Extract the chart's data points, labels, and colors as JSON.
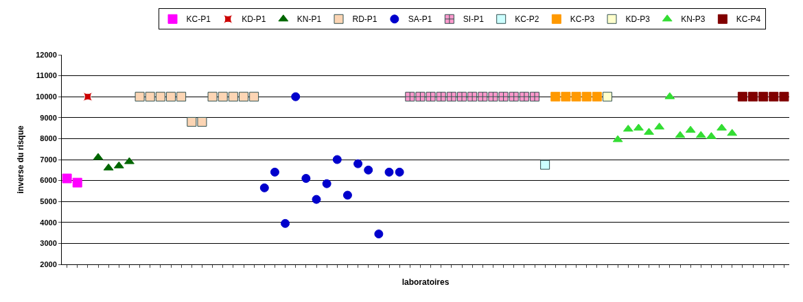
{
  "chart_data": {
    "type": "scatter",
    "xlabel": "laboratoires",
    "ylabel": "inverse du risque",
    "categories": [
      null,
      null,
      null,
      null,
      null,
      null,
      null,
      null,
      null,
      null,
      null,
      null,
      null,
      null,
      null,
      null,
      null,
      null,
      null,
      null,
      null,
      null,
      null,
      null,
      null,
      null,
      null,
      null,
      null,
      null,
      null,
      null,
      null,
      null,
      null,
      null,
      null,
      null,
      null,
      null,
      null,
      null,
      null,
      null,
      null,
      null,
      null,
      null,
      null,
      null,
      null,
      null,
      null,
      null,
      null,
      null,
      null,
      null,
      null,
      null,
      null,
      null,
      null,
      null,
      null,
      null,
      null,
      null,
      null,
      null
    ],
    "ylim": [
      2000,
      12000
    ],
    "yticks": [
      2000,
      3000,
      4000,
      5000,
      6000,
      7000,
      8000,
      9000,
      10000,
      11000,
      12000
    ],
    "grid": "y",
    "legend": "top",
    "series": [
      {
        "name": "KC-P1",
        "color": "#ff00ff",
        "marker": "square",
        "values": [
          6100,
          5900,
          null,
          null,
          null,
          null,
          null,
          null,
          null,
          null,
          null,
          null,
          null,
          null,
          null,
          null,
          null,
          null,
          null,
          null,
          null,
          null,
          null,
          null,
          null,
          null,
          null,
          null,
          null,
          null,
          null,
          null,
          null,
          null,
          null,
          null,
          null,
          null,
          null,
          null,
          null,
          null,
          null,
          null,
          null,
          null,
          null,
          null,
          null,
          null,
          null,
          null,
          null,
          null,
          null,
          null,
          null,
          null,
          null,
          null,
          null,
          null,
          null,
          null,
          null,
          null,
          null,
          null,
          null,
          null
        ]
      },
      {
        "name": "KD-P1",
        "color": "#cc0000",
        "marker": "star",
        "values": [
          null,
          null,
          10000,
          null,
          null,
          null,
          null,
          null,
          null,
          null,
          null,
          null,
          null,
          null,
          null,
          null,
          null,
          null,
          null,
          null,
          null,
          null,
          null,
          null,
          null,
          null,
          null,
          null,
          null,
          null,
          null,
          null,
          null,
          null,
          null,
          null,
          null,
          null,
          null,
          null,
          null,
          null,
          null,
          null,
          null,
          null,
          null,
          null,
          null,
          null,
          null,
          null,
          null,
          null,
          null,
          null,
          null,
          null,
          null,
          null,
          null,
          null,
          null,
          null,
          null,
          null,
          null,
          null,
          null,
          null
        ]
      },
      {
        "name": "KN-P1",
        "color": "#006600",
        "marker": "triangle",
        "values": [
          null,
          null,
          null,
          7100,
          6600,
          6700,
          6900,
          null,
          null,
          null,
          null,
          null,
          null,
          null,
          null,
          null,
          null,
          null,
          null,
          null,
          null,
          null,
          null,
          null,
          null,
          null,
          null,
          null,
          null,
          null,
          null,
          null,
          null,
          null,
          null,
          null,
          null,
          null,
          null,
          null,
          null,
          null,
          null,
          null,
          null,
          null,
          null,
          null,
          null,
          null,
          null,
          null,
          null,
          null,
          null,
          null,
          null,
          null,
          null,
          null,
          null,
          null,
          null,
          null,
          null,
          null,
          null,
          null,
          null,
          null
        ]
      },
      {
        "name": "RD-P1",
        "color": "#fcd5b4",
        "marker": "square",
        "values": [
          null,
          null,
          null,
          null,
          null,
          null,
          null,
          10000,
          10000,
          10000,
          10000,
          10000,
          8800,
          8800,
          10000,
          10000,
          10000,
          10000,
          10000,
          null,
          null,
          null,
          null,
          null,
          null,
          null,
          null,
          null,
          null,
          null,
          null,
          null,
          null,
          null,
          null,
          null,
          null,
          null,
          null,
          null,
          null,
          null,
          null,
          null,
          null,
          null,
          null,
          null,
          null,
          null,
          null,
          null,
          null,
          null,
          null,
          null,
          null,
          null,
          null,
          null,
          null,
          null,
          null,
          null,
          null,
          null,
          null,
          null,
          null,
          null
        ]
      },
      {
        "name": "SA-P1",
        "color": "#0000cc",
        "marker": "circle",
        "values": [
          null,
          null,
          null,
          null,
          null,
          null,
          null,
          null,
          null,
          null,
          null,
          null,
          null,
          null,
          null,
          null,
          null,
          null,
          null,
          5650,
          6400,
          3950,
          10000,
          6100,
          5100,
          5850,
          7000,
          5300,
          6800,
          6500,
          3450,
          6400,
          6400,
          null,
          null,
          null,
          null,
          null,
          null,
          null,
          null,
          null,
          null,
          null,
          null,
          null,
          null,
          null,
          null,
          null,
          null,
          null,
          null,
          null,
          null,
          null,
          null,
          null,
          null,
          null,
          null,
          null,
          null,
          null,
          null,
          null,
          null,
          null,
          null,
          null
        ]
      },
      {
        "name": "SI-P1",
        "color": "#ff99cc",
        "marker": "cross",
        "values": [
          null,
          null,
          null,
          null,
          null,
          null,
          null,
          null,
          null,
          null,
          null,
          null,
          null,
          null,
          null,
          null,
          null,
          null,
          null,
          null,
          null,
          null,
          null,
          null,
          null,
          null,
          null,
          null,
          null,
          null,
          null,
          null,
          null,
          10000,
          10000,
          10000,
          10000,
          10000,
          10000,
          10000,
          10000,
          10000,
          10000,
          10000,
          10000,
          10000,
          null,
          null,
          null,
          null,
          null,
          null,
          null,
          null,
          null,
          null,
          null,
          null,
          null,
          null,
          null,
          null,
          null,
          null,
          null,
          null,
          null,
          null,
          null,
          null
        ]
      },
      {
        "name": "KC-P2",
        "color": "#ccffff",
        "marker": "square",
        "values": [
          null,
          null,
          null,
          null,
          null,
          null,
          null,
          null,
          null,
          null,
          null,
          null,
          null,
          null,
          null,
          null,
          null,
          null,
          null,
          null,
          null,
          null,
          null,
          null,
          null,
          null,
          null,
          null,
          null,
          null,
          null,
          null,
          null,
          null,
          null,
          null,
          null,
          null,
          null,
          null,
          null,
          null,
          null,
          null,
          null,
          null,
          6750,
          null,
          null,
          null,
          null,
          null,
          null,
          null,
          null,
          null,
          null,
          null,
          null,
          null,
          null,
          null,
          null,
          null,
          null,
          null,
          null,
          null,
          null,
          null
        ]
      },
      {
        "name": "KC-P3",
        "color": "#ff9900",
        "marker": "square",
        "values": [
          null,
          null,
          null,
          null,
          null,
          null,
          null,
          null,
          null,
          null,
          null,
          null,
          null,
          null,
          null,
          null,
          null,
          null,
          null,
          null,
          null,
          null,
          null,
          null,
          null,
          null,
          null,
          null,
          null,
          null,
          null,
          null,
          null,
          null,
          null,
          null,
          null,
          null,
          null,
          null,
          null,
          null,
          null,
          null,
          null,
          null,
          null,
          10000,
          10000,
          10000,
          10000,
          10000,
          null,
          null,
          null,
          null,
          null,
          null,
          null,
          null,
          null,
          null,
          null,
          null,
          null,
          null,
          null,
          null,
          null,
          null
        ]
      },
      {
        "name": "KD-P3",
        "color": "#ffffcc",
        "marker": "square",
        "values": [
          null,
          null,
          null,
          null,
          null,
          null,
          null,
          null,
          null,
          null,
          null,
          null,
          null,
          null,
          null,
          null,
          null,
          null,
          null,
          null,
          null,
          null,
          null,
          null,
          null,
          null,
          null,
          null,
          null,
          null,
          null,
          null,
          null,
          null,
          null,
          null,
          null,
          null,
          null,
          null,
          null,
          null,
          null,
          null,
          null,
          null,
          null,
          null,
          null,
          null,
          null,
          null,
          10000,
          null,
          null,
          null,
          null,
          null,
          null,
          null,
          null,
          null,
          null,
          null,
          null,
          null,
          null,
          null,
          null,
          null
        ]
      },
      {
        "name": "KN-P3",
        "color": "#33dd33",
        "marker": "triangle",
        "values": [
          null,
          null,
          null,
          null,
          null,
          null,
          null,
          null,
          null,
          null,
          null,
          null,
          null,
          null,
          null,
          null,
          null,
          null,
          null,
          null,
          null,
          null,
          null,
          null,
          null,
          null,
          null,
          null,
          null,
          null,
          null,
          null,
          null,
          null,
          null,
          null,
          null,
          null,
          null,
          null,
          null,
          null,
          null,
          null,
          null,
          null,
          null,
          null,
          null,
          null,
          null,
          null,
          null,
          7950,
          8450,
          8500,
          8300,
          8550,
          10000,
          8150,
          8400,
          8150,
          8100,
          8500,
          8250,
          null,
          null,
          null,
          null,
          null
        ]
      },
      {
        "name": "KC-P4",
        "color": "#800000",
        "marker": "square",
        "values": [
          null,
          null,
          null,
          null,
          null,
          null,
          null,
          null,
          null,
          null,
          null,
          null,
          null,
          null,
          null,
          null,
          null,
          null,
          null,
          null,
          null,
          null,
          null,
          null,
          null,
          null,
          null,
          null,
          null,
          null,
          null,
          null,
          null,
          null,
          null,
          null,
          null,
          null,
          null,
          null,
          null,
          null,
          null,
          null,
          null,
          null,
          null,
          null,
          null,
          null,
          null,
          null,
          null,
          null,
          null,
          null,
          null,
          null,
          null,
          null,
          null,
          null,
          null,
          null,
          null,
          10000,
          10000,
          10000,
          10000,
          10000
        ]
      }
    ]
  }
}
